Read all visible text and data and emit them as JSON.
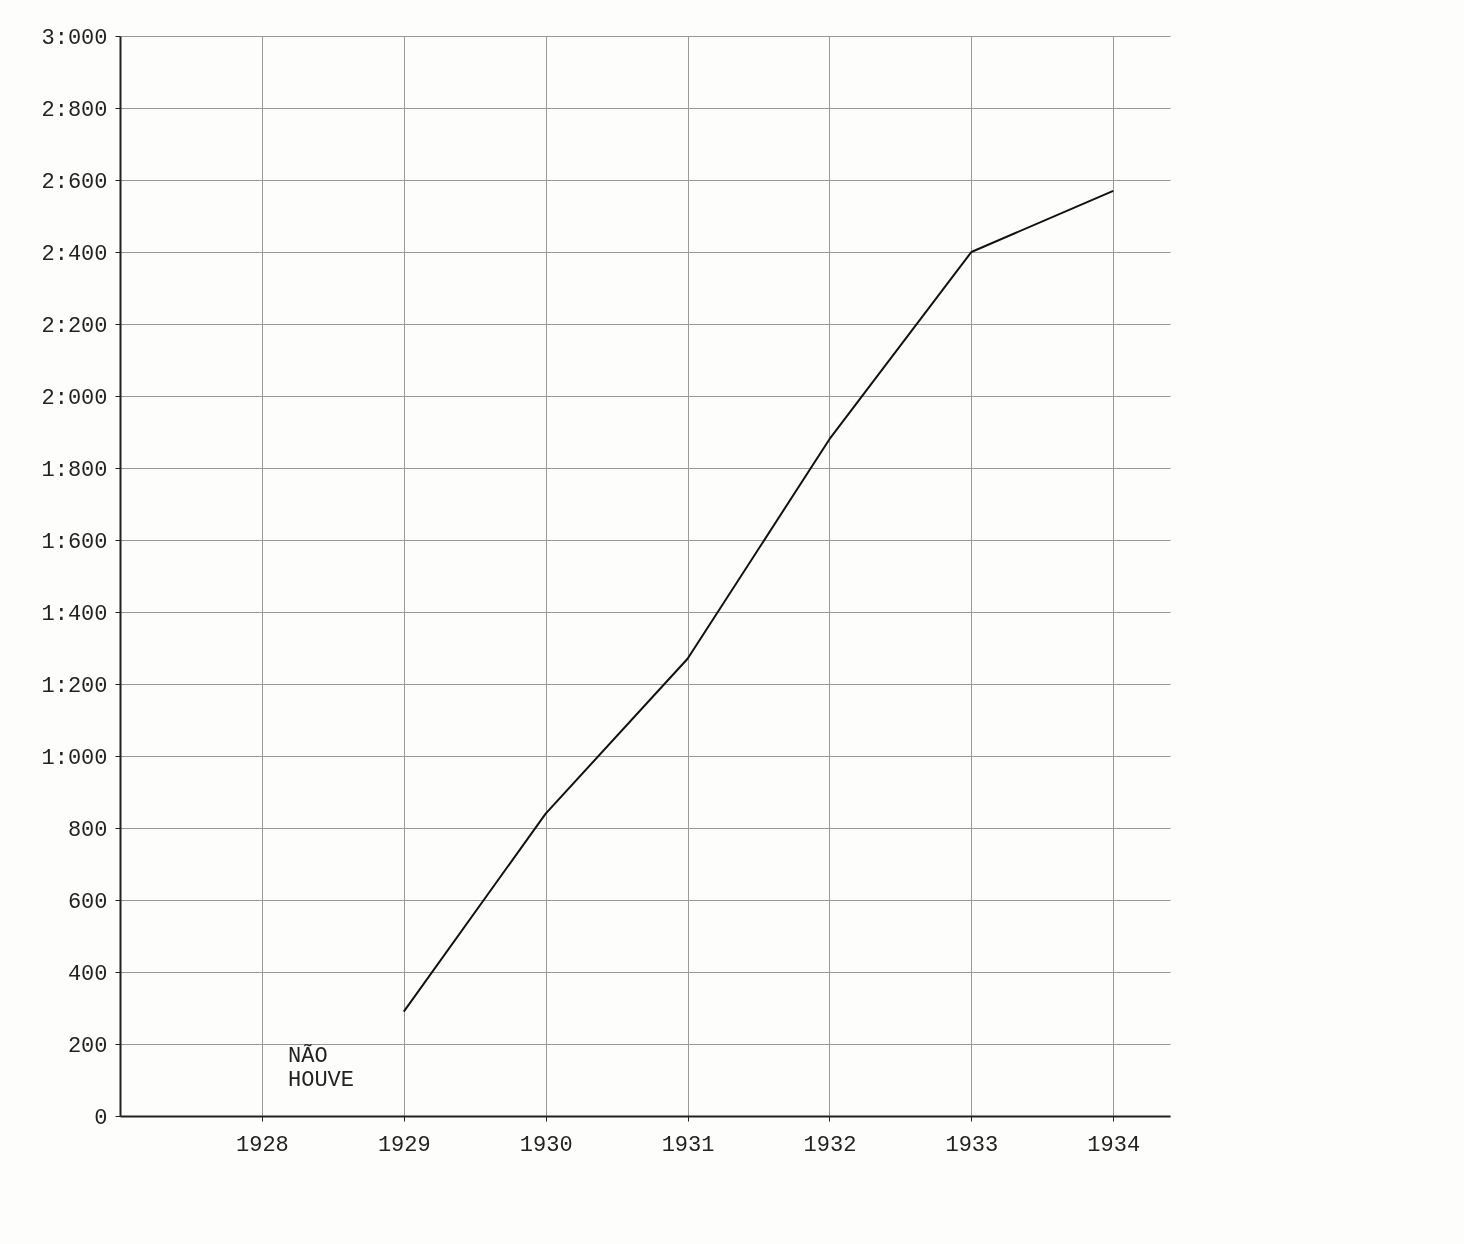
{
  "chart_data": {
    "type": "line",
    "x": [
      1929,
      1930,
      1931,
      1932,
      1933,
      1934
    ],
    "series": [
      {
        "color": "#111111",
        "values": [
          290,
          840,
          1270,
          1880,
          2400,
          2570
        ]
      }
    ],
    "xlim": [
      1927,
      1934.4
    ],
    "xticks": [
      1928,
      1929,
      1930,
      1931,
      1932,
      1933,
      1934
    ],
    "ylim": [
      0,
      3000
    ],
    "yticks": [
      0,
      200,
      400,
      600,
      800,
      {
        "value": 1000,
        "label": "1:000"
      },
      {
        "value": 1200,
        "label": "1:200"
      },
      {
        "value": 1400,
        "label": "1:400"
      },
      {
        "value": 1600,
        "label": "1:600"
      },
      {
        "value": 1800,
        "label": "1:800"
      },
      {
        "value": 2000,
        "label": "2:000"
      },
      {
        "value": 2200,
        "label": "2:200"
      },
      {
        "value": 2400,
        "label": "2:400"
      },
      {
        "value": 2600,
        "label": "2:600"
      },
      {
        "value": 2800,
        "label": "2:800"
      },
      {
        "value": 3000,
        "label": "3:000"
      }
    ],
    "annotations": [
      "NÃO HOUVE"
    ],
    "grid": true,
    "marker": "none",
    "line_style": "solid"
  }
}
